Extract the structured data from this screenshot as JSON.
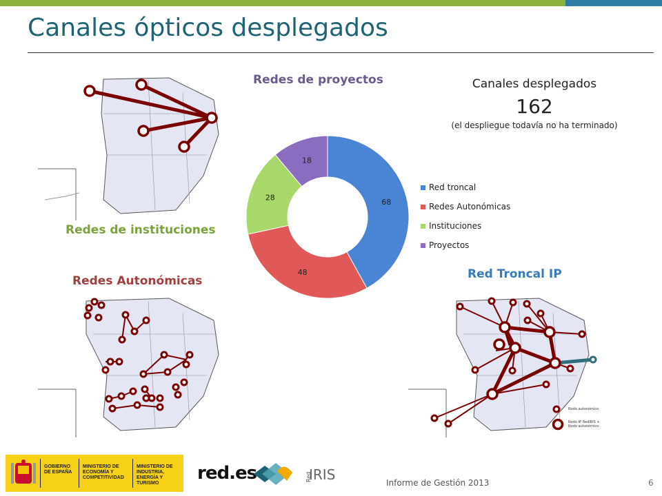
{
  "slide": {
    "title": "Canales ópticos desplegados",
    "labels": {
      "instituciones": "Redes de instituciones",
      "autonomicas": "Redes Autonómicas",
      "proyectos": "Redes de proyectos",
      "troncal": "Red Troncal IP"
    },
    "canales": {
      "heading": "Canales desplegados",
      "count": "162",
      "note": "(el despliegue todavía no ha terminado)"
    },
    "node_legend": {
      "small": "Nodo autonómico",
      "large": "Nodo IP RedIRIS + Nodo autonómico"
    },
    "footer": {
      "report": "Informe de Gestión 2013",
      "page": "6",
      "gob_1": "GOBIERNO DE ESPAÑA",
      "gob_2": "MINISTERIO DE ECONOMÍA Y COMPETITIVIDAD",
      "gob_3": "MINISTERIO DE INDUSTRIA, ENERGÍA Y TURISMO",
      "reds": "red.es",
      "rediris_small": "Red",
      "rediris_big": "IRIS"
    },
    "colors": {
      "title": "#1f6474",
      "link": "#7a0000",
      "node_fill": "#ffffff",
      "map_fill": "#e4e6f4",
      "highlight_node": "#2f6e7a"
    }
  },
  "chart_data": {
    "type": "pie",
    "variant": "doughnut",
    "categories": [
      "Red troncal",
      "Redes Autonómicas",
      "Instituciones",
      "Proyectos"
    ],
    "values": [
      68,
      48,
      28,
      18
    ],
    "colors": [
      "#4a84d4",
      "#e05858",
      "#a8d86a",
      "#8a6cc0"
    ],
    "legend": "right",
    "title": ""
  }
}
